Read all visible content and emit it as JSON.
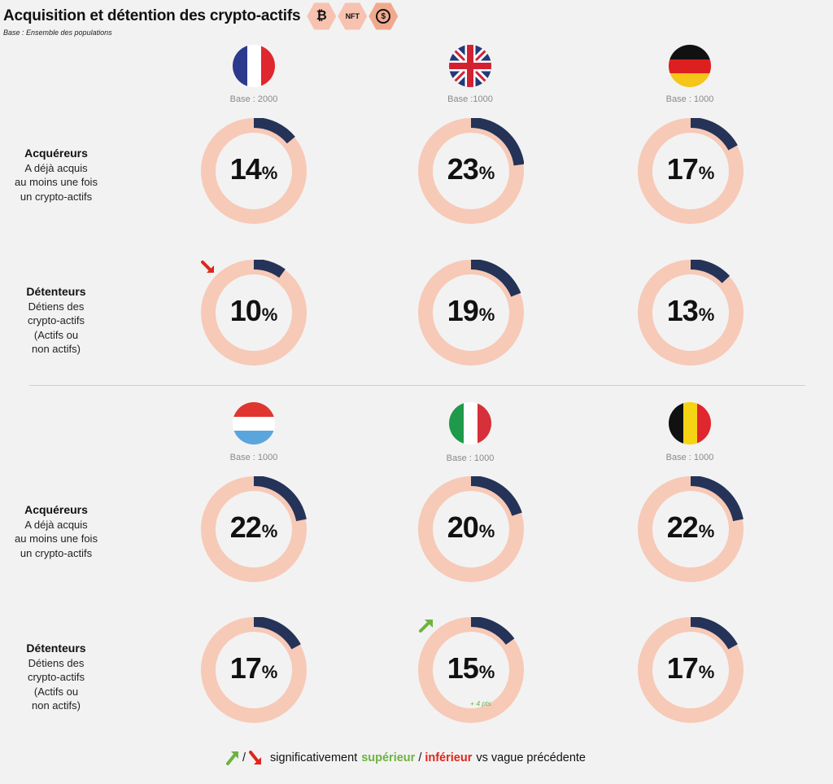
{
  "header": {
    "title": "Acquisition et détention des crypto-actifs",
    "subtitle": "Base : Ensemble des populations",
    "badges": [
      {
        "icon": "bitcoin-icon",
        "text": "₿"
      },
      {
        "icon": "nft-icon",
        "text": "NFT"
      },
      {
        "icon": "dollar-coin-icon",
        "text": "$"
      }
    ]
  },
  "row_labels": {
    "acquereurs": {
      "title": "Acquéreurs",
      "desc": "A déjà acquis\nau moins une fois\nun crypto-actifs"
    },
    "detenteurs": {
      "title": "Détenteurs",
      "desc": "Détiens des\ncrypto-actifs\n(Actifs ou\nnon actifs)"
    }
  },
  "colors": {
    "ring_bg": "#f7c9b7",
    "ring_fg": "#243357",
    "up": "#6db33f",
    "down": "#e0251b"
  },
  "chart_data": {
    "type": "donut",
    "unit": "%",
    "countries": [
      {
        "flag": "france-flag",
        "base": "Base : 2000",
        "acquereurs": 14,
        "detenteurs": 10,
        "detenteurs_trend": "down"
      },
      {
        "flag": "uk-flag",
        "base": "Base :1000",
        "acquereurs": 23,
        "detenteurs": 19
      },
      {
        "flag": "germany-flag",
        "base": "Base : 1000",
        "acquereurs": 17,
        "detenteurs": 13
      },
      {
        "flag": "luxembourg-flag",
        "base": "Base : 1000",
        "acquereurs": 22,
        "detenteurs": 17
      },
      {
        "flag": "italy-flag",
        "base": "Base : 1000",
        "acquereurs": 20,
        "detenteurs": 15,
        "detenteurs_trend": "up",
        "detenteurs_note": "+ 4 pts"
      },
      {
        "flag": "belgium-flag",
        "base": "Base : 1000",
        "acquereurs": 22,
        "detenteurs": 17
      }
    ]
  },
  "legend": {
    "separator": "/",
    "text1": "significativement",
    "sup": "supérieur",
    "sep2": "/",
    "inf": "inférieur",
    "text2": "vs vague précédente"
  }
}
